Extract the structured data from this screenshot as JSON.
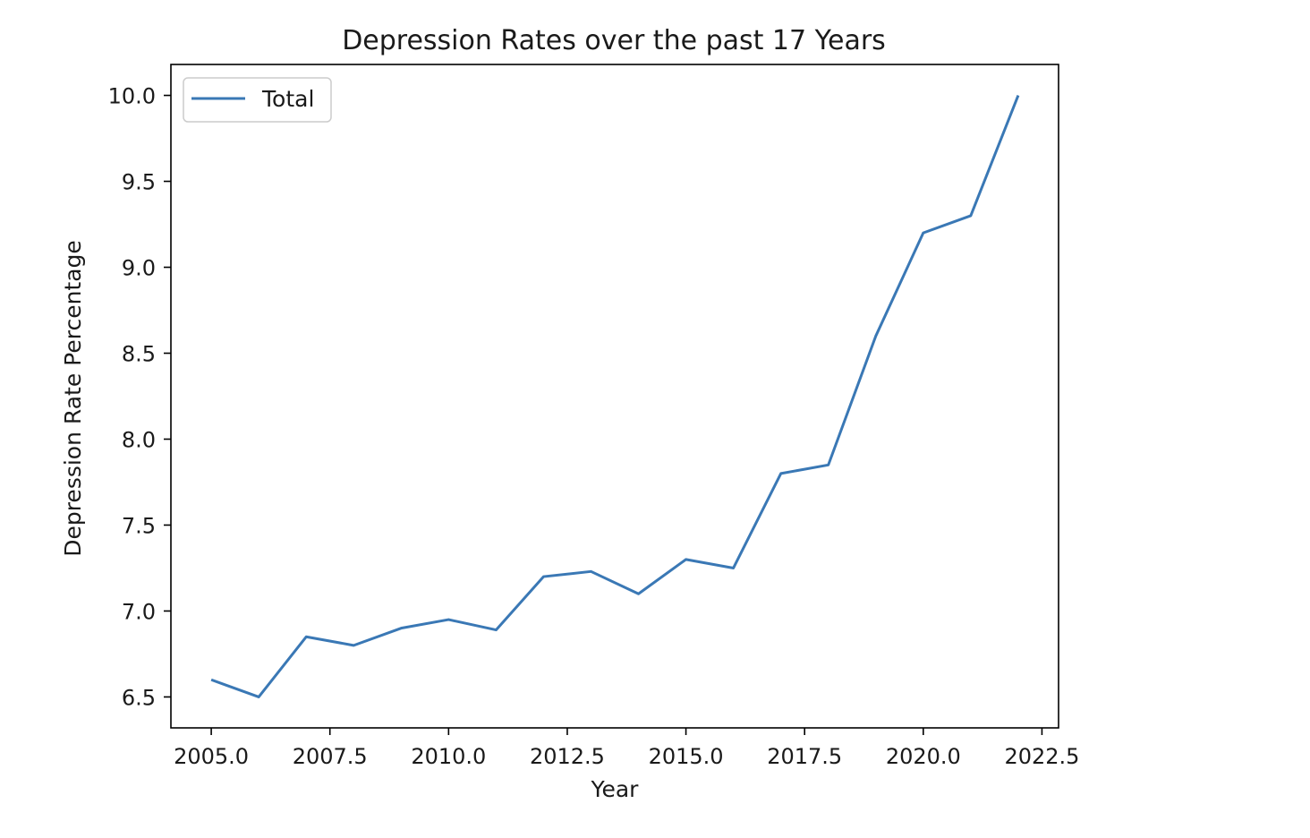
{
  "chart_data": {
    "type": "line",
    "title": "Depression Rates over the past 17 Years",
    "xlabel": "Year",
    "ylabel": "Depression Rate Percentage",
    "xlim": [
      2004.15,
      2022.85
    ],
    "ylim": [
      6.32,
      10.18
    ],
    "xticks": [
      2005.0,
      2007.5,
      2010.0,
      2012.5,
      2015.0,
      2017.5,
      2020.0,
      2022.5
    ],
    "xtick_labels": [
      "2005.0",
      "2007.5",
      "2010.0",
      "2012.5",
      "2015.0",
      "2017.5",
      "2020.0",
      "2022.5"
    ],
    "yticks": [
      6.5,
      7.0,
      7.5,
      8.0,
      8.5,
      9.0,
      9.5,
      10.0
    ],
    "ytick_labels": [
      "6.5",
      "7.0",
      "7.5",
      "8.0",
      "8.5",
      "9.0",
      "9.5",
      "10.0"
    ],
    "grid": false,
    "legend_position": "top-left",
    "series": [
      {
        "name": "Total",
        "color": "#3a78b5",
        "x": [
          2005,
          2006,
          2007,
          2008,
          2009,
          2010,
          2011,
          2012,
          2013,
          2014,
          2015,
          2016,
          2017,
          2018,
          2019,
          2020,
          2021,
          2022
        ],
        "y": [
          6.6,
          6.5,
          6.85,
          6.8,
          6.9,
          6.95,
          6.89,
          7.2,
          7.23,
          7.1,
          7.3,
          7.25,
          7.8,
          7.85,
          8.6,
          9.2,
          9.3,
          10.0
        ]
      }
    ]
  }
}
